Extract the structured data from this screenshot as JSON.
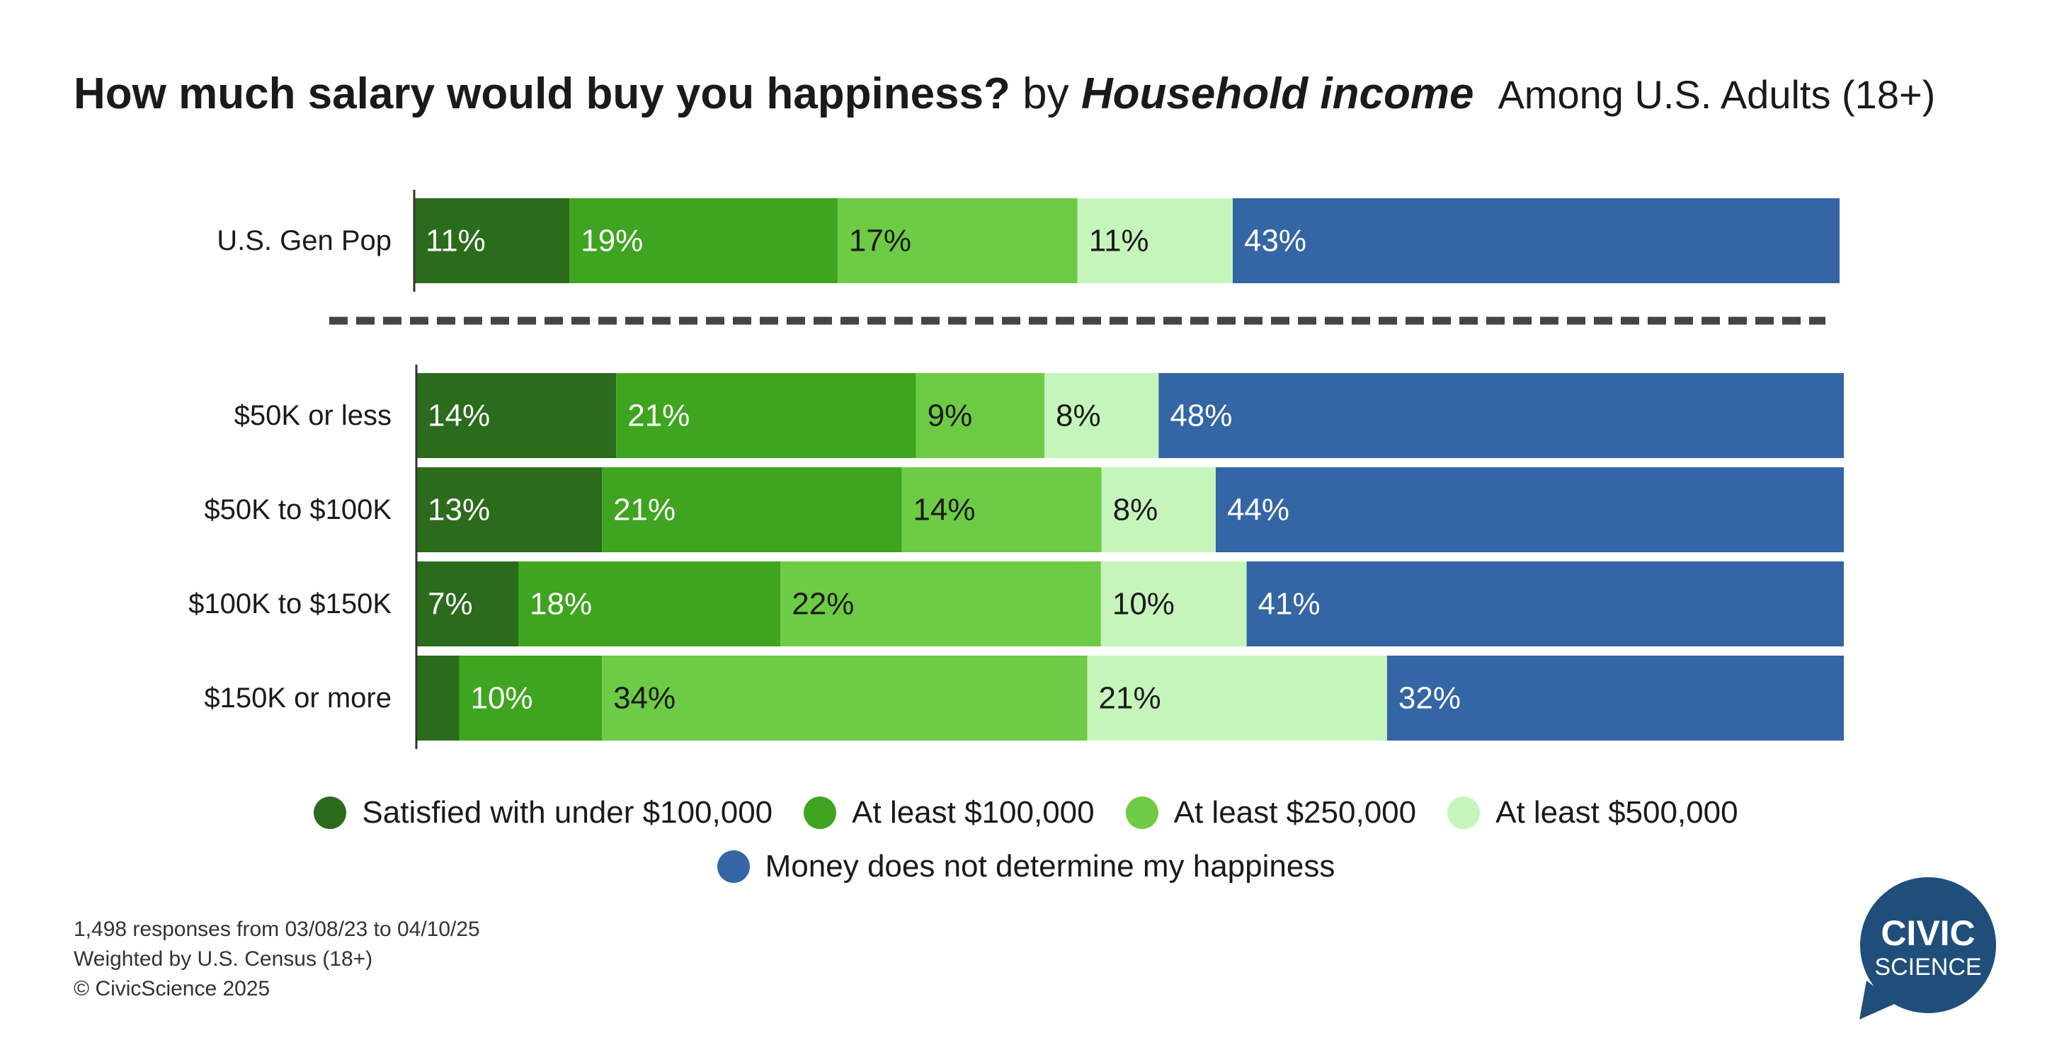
{
  "title": {
    "main": "How much salary would buy you happiness?",
    "by": "by",
    "dimension": "Household income",
    "subtitle": "Among U.S. Adults (18+)"
  },
  "chart_data": {
    "type": "bar",
    "orientation": "horizontal",
    "stacked": true,
    "xlim": [
      0,
      100
    ],
    "categories": [
      "U.S. Gen Pop",
      "$50K or less",
      "$50K to $100K",
      "$100K to $150K",
      "$150K or more"
    ],
    "series": [
      {
        "name": "Satisfied with under $100,000",
        "color": "#2a6b1c",
        "values": [
          11,
          14,
          13,
          7,
          3
        ],
        "labels": [
          "11%",
          "14%",
          "13%",
          "7%",
          ""
        ]
      },
      {
        "name": "At least $100,000",
        "color": "#3fa41f",
        "values": [
          19,
          21,
          21,
          18,
          10
        ],
        "labels": [
          "19%",
          "21%",
          "21%",
          "18%",
          "10%"
        ]
      },
      {
        "name": "At least $250,000",
        "color": "#6ecb45",
        "values": [
          17,
          9,
          14,
          22,
          34
        ],
        "labels": [
          "17%",
          "9%",
          "14%",
          "22%",
          "34%"
        ]
      },
      {
        "name": "At least $500,000",
        "color": "#c6f5bb",
        "values": [
          11,
          8,
          8,
          10,
          21
        ],
        "labels": [
          "11%",
          "8%",
          "8%",
          "10%",
          "21%"
        ]
      },
      {
        "name": "Money does not determine my happiness",
        "color": "#3465a4",
        "values": [
          43,
          48,
          44,
          41,
          32
        ],
        "labels": [
          "43%",
          "48%",
          "44%",
          "41%",
          "32%"
        ]
      }
    ],
    "label_colors": [
      "#ffffff",
      "#ffffff",
      "#1a1a1a",
      "#1a1a1a",
      "#ffffff"
    ],
    "separator_after": 0,
    "legend_position": "bottom"
  },
  "footer": {
    "line1": "1,498 responses from 03/08/23 to 04/10/25",
    "line2": "Weighted by U.S. Census (18+)",
    "line3": "© CivicScience 2025"
  },
  "logo": {
    "line1": "CIVIC",
    "line2": "SCIENCE",
    "color": "#1f4e7a"
  }
}
